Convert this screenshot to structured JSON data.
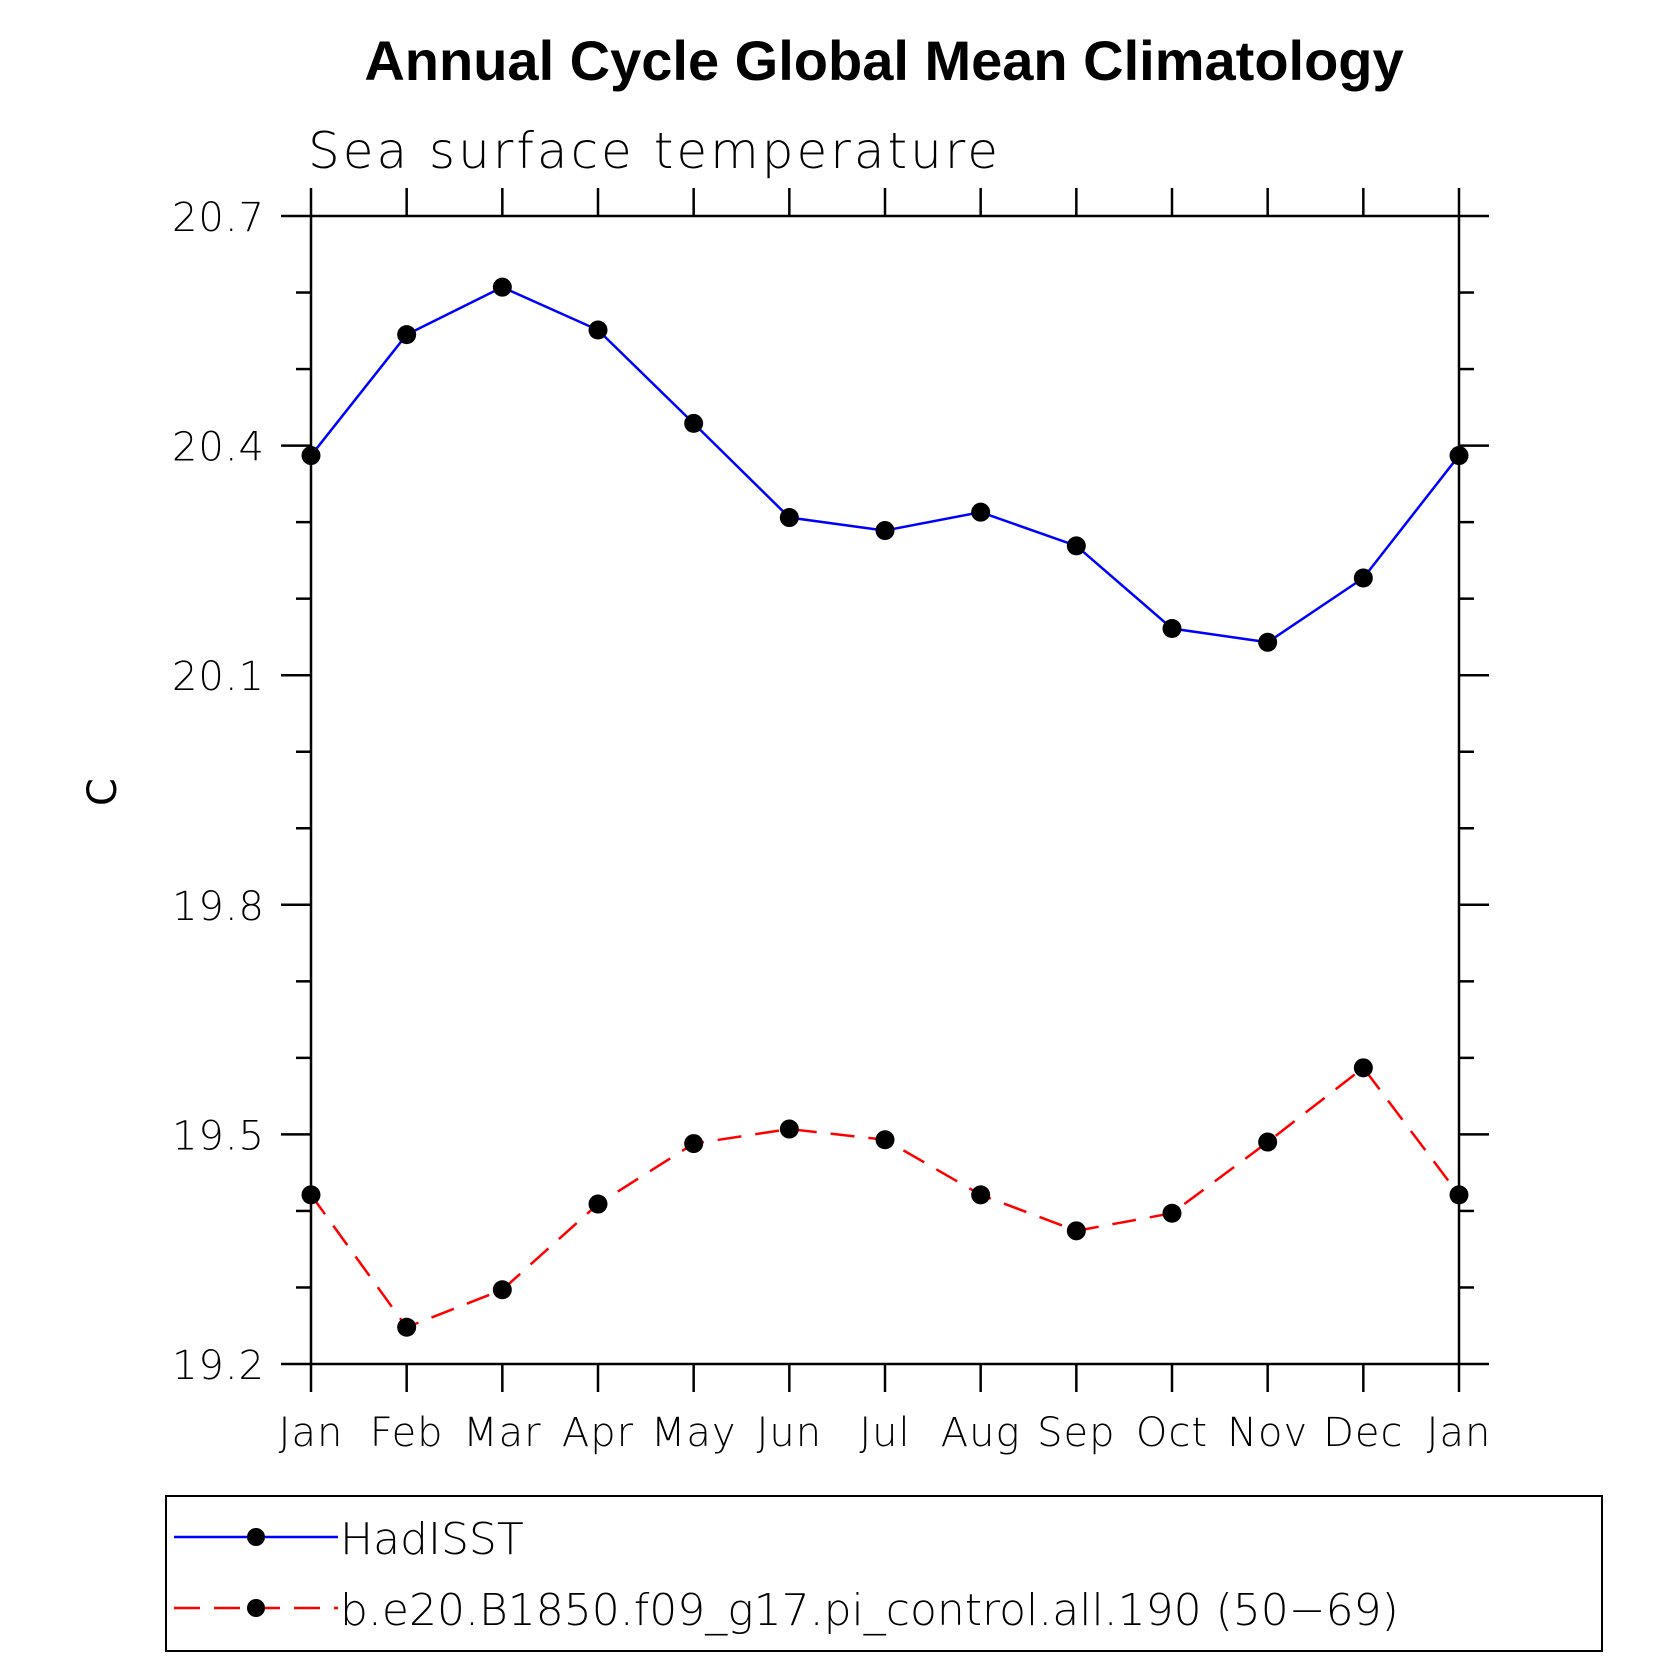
{
  "chart_data": {
    "type": "line",
    "title": "Annual Cycle Global Mean Climatology",
    "subtitle": "Sea surface temperature",
    "xlabel": "",
    "ylabel": "C",
    "categories": [
      "Jan",
      "Feb",
      "Mar",
      "Apr",
      "May",
      "Jun",
      "Jul",
      "Aug",
      "Sep",
      "Oct",
      "Nov",
      "Dec",
      "Jan"
    ],
    "ylim": [
      19.2,
      20.7
    ],
    "yticks": [
      "19.2",
      "19.5",
      "19.8",
      "20.1",
      "20.4",
      "20.7"
    ],
    "legend_position": "bottom",
    "series": [
      {
        "name": "HadISST",
        "color": "#0000ff",
        "style": "solid",
        "marker": "circle",
        "values": [
          20.387,
          20.545,
          20.607,
          20.551,
          20.429,
          20.306,
          20.289,
          20.313,
          20.269,
          20.161,
          20.143,
          20.227,
          20.387
        ]
      },
      {
        "name": "b.e20.B1850.f09_g17.pi_control.all.190 (50−69)",
        "color": "#ff0000",
        "style": "dashed",
        "marker": "circle",
        "values": [
          19.421,
          19.248,
          19.297,
          19.409,
          19.488,
          19.507,
          19.493,
          19.421,
          19.374,
          19.397,
          19.49,
          19.587,
          19.421
        ]
      }
    ]
  }
}
